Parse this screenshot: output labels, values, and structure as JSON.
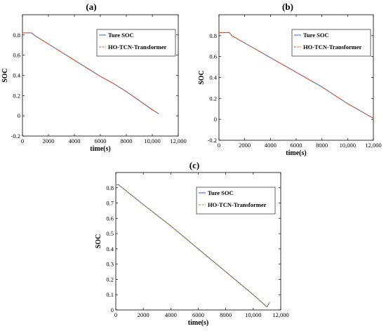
{
  "chart_data": [
    {
      "panel": "(a)",
      "type": "line",
      "xlabel": "time(s)",
      "ylabel": "SOC",
      "xlim": [
        0,
        12000
      ],
      "ylim": [
        -0.2,
        1.0
      ],
      "xticks": [
        "0",
        "2000",
        "4000",
        "6000",
        "8000",
        "10,000",
        "12,000"
      ],
      "yticks": [
        "-0.2",
        "0",
        "0.2",
        "0.4",
        "0.6",
        "0.8"
      ],
      "legend_position": "top-right",
      "series": [
        {
          "name": "Ture SOC",
          "color": "#3b7bd4",
          "style": "solid",
          "x": [
            0,
            700,
            1000,
            2000,
            3000,
            4000,
            5000,
            6000,
            7000,
            8000,
            9000,
            10000,
            10500
          ],
          "y": [
            0.82,
            0.82,
            0.79,
            0.71,
            0.63,
            0.55,
            0.47,
            0.39,
            0.32,
            0.24,
            0.15,
            0.06,
            0.02
          ]
        },
        {
          "name": "HO-TCN-Transformer",
          "color": "#e8541e",
          "style": "dashed",
          "x": [
            0,
            700,
            1000,
            2000,
            3000,
            4000,
            5000,
            6000,
            7000,
            8000,
            9000,
            10000,
            10500
          ],
          "y": [
            0.82,
            0.82,
            0.79,
            0.71,
            0.63,
            0.55,
            0.47,
            0.39,
            0.32,
            0.24,
            0.15,
            0.06,
            0.02
          ]
        }
      ]
    },
    {
      "panel": "(b)",
      "type": "line",
      "xlabel": "time(s)",
      "ylabel": "SOC",
      "xlim": [
        0,
        12000
      ],
      "ylim": [
        -0.2,
        1.0
      ],
      "xticks": [
        "0",
        "2000",
        "4000",
        "6000",
        "8000",
        "10,000",
        "12,000"
      ],
      "yticks": [
        "-0.2",
        "0",
        "0.2",
        "0.4",
        "0.6",
        "0.8"
      ],
      "legend_position": "top-right",
      "series": [
        {
          "name": "Ture SOC",
          "color": "#3b7bd4",
          "style": "solid",
          "x": [
            0,
            800,
            1000,
            2000,
            3000,
            4000,
            5000,
            6000,
            7000,
            8000,
            9000,
            10000,
            11000,
            12000
          ],
          "y": [
            0.83,
            0.83,
            0.8,
            0.73,
            0.66,
            0.59,
            0.52,
            0.45,
            0.38,
            0.31,
            0.23,
            0.15,
            0.08,
            0.01
          ]
        },
        {
          "name": "HO-TCN-Transformer",
          "color": "#e8541e",
          "style": "dashed",
          "x": [
            0,
            800,
            1000,
            2000,
            3000,
            4000,
            5000,
            6000,
            7000,
            8000,
            9000,
            10000,
            11000,
            12000
          ],
          "y": [
            0.83,
            0.83,
            0.8,
            0.73,
            0.66,
            0.59,
            0.52,
            0.45,
            0.38,
            0.31,
            0.23,
            0.15,
            0.08,
            0.01
          ]
        }
      ]
    },
    {
      "panel": "(c)",
      "type": "line",
      "xlabel": "time(s)",
      "ylabel": "SOC",
      "xlim": [
        0,
        12000
      ],
      "ylim": [
        0,
        0.9
      ],
      "xticks": [
        "0",
        "2000",
        "4000",
        "6000",
        "8000",
        "10,000",
        "12,000"
      ],
      "yticks": [
        "0",
        "0.1",
        "0.2",
        "0.3",
        "0.4",
        "0.5",
        "0.6",
        "0.7",
        "0.8"
      ],
      "legend_position": "top-right",
      "series": [
        {
          "name": "Ture SOC",
          "color": "#3b5bd4",
          "style": "solid",
          "x": [
            0,
            200,
            2000,
            4000,
            6000,
            8000,
            10000,
            11000,
            11200
          ],
          "y": [
            0.82,
            0.82,
            0.69,
            0.55,
            0.4,
            0.25,
            0.1,
            0.02,
            0.05
          ]
        },
        {
          "name": "HO-TCN-Transformer",
          "color": "#b08a2e",
          "style": "dashed",
          "x": [
            0,
            200,
            2000,
            4000,
            6000,
            8000,
            10000,
            11000,
            11200
          ],
          "y": [
            0.82,
            0.82,
            0.69,
            0.55,
            0.4,
            0.25,
            0.1,
            0.02,
            0.05
          ]
        }
      ]
    }
  ]
}
